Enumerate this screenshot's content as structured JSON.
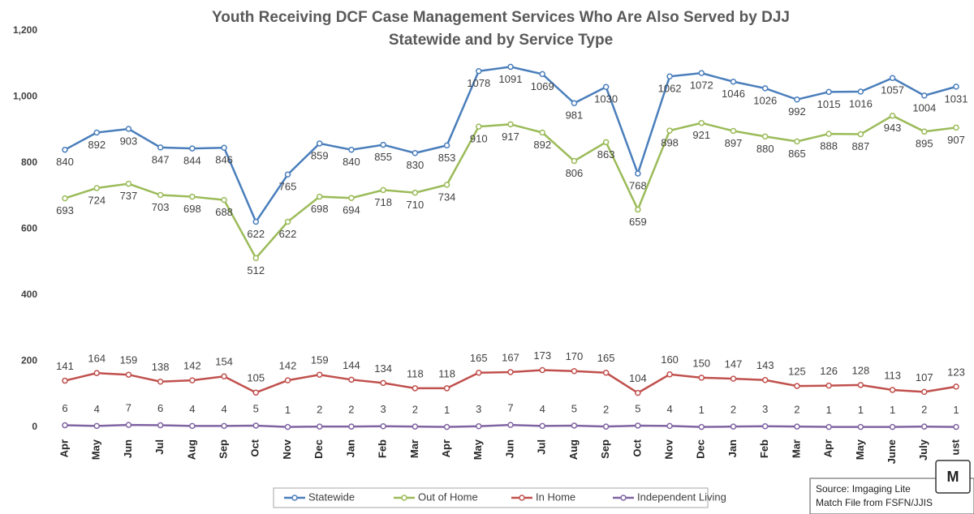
{
  "chart_data": {
    "type": "line",
    "title": "Youth Receiving DCF Case Management Services Who Are Also Served by DJJ",
    "subtitle": "Statewide and by Service Type",
    "categories": [
      "Apr",
      "May",
      "Jun",
      "Jul",
      "Aug",
      "Sep",
      "Oct",
      "Nov",
      "Dec",
      "Jan",
      "Feb",
      "Mar",
      "Apr",
      "May",
      "Jun",
      "Jul",
      "Aug",
      "Sep",
      "Oct",
      "Nov",
      "Dec",
      "Jan",
      "Feb",
      "Mar",
      "Apr",
      "May",
      "June",
      "July",
      "ust"
    ],
    "series": [
      {
        "name": "Statewide",
        "color": "#4a7ebb",
        "values": [
          840,
          892,
          903,
          847,
          844,
          846,
          622,
          765,
          859,
          840,
          855,
          830,
          853,
          1078,
          1091,
          1069,
          981,
          1030,
          768,
          1062,
          1072,
          1046,
          1026,
          992,
          1015,
          1016,
          1057,
          1004,
          1031
        ]
      },
      {
        "name": "Out of Home",
        "color": "#9bbb59",
        "values": [
          693,
          724,
          737,
          703,
          698,
          688,
          512,
          622,
          698,
          694,
          718,
          710,
          734,
          910,
          917,
          892,
          806,
          863,
          659,
          898,
          921,
          897,
          880,
          865,
          888,
          887,
          943,
          895,
          907
        ]
      },
      {
        "name": "In Home",
        "color": "#c0504d",
        "values": [
          141,
          164,
          159,
          138,
          142,
          154,
          105,
          142,
          159,
          144,
          134,
          118,
          118,
          165,
          167,
          173,
          170,
          165,
          104,
          160,
          150,
          147,
          143,
          125,
          126,
          128,
          113,
          107,
          123
        ]
      },
      {
        "name": "Independent Living",
        "color": "#8064a2",
        "values": [
          6,
          4,
          7,
          6,
          4,
          4,
          5,
          1,
          2,
          2,
          3,
          2,
          1,
          3,
          7,
          4,
          5,
          2,
          5,
          4,
          1,
          2,
          3,
          2,
          1,
          1,
          1,
          2,
          1
        ]
      }
    ],
    "ylim": [
      0,
      1200
    ],
    "yticks": [
      0,
      200,
      400,
      600,
      800,
      {
        "value": 1000,
        "label": "1,000"
      },
      {
        "value": 1200,
        "label": "1,200"
      }
    ],
    "grid": false,
    "legend": "bottom",
    "source": [
      "Source: Imgaging Lite",
      "Match File from FSFN/JJIS"
    ],
    "badge": "M"
  }
}
